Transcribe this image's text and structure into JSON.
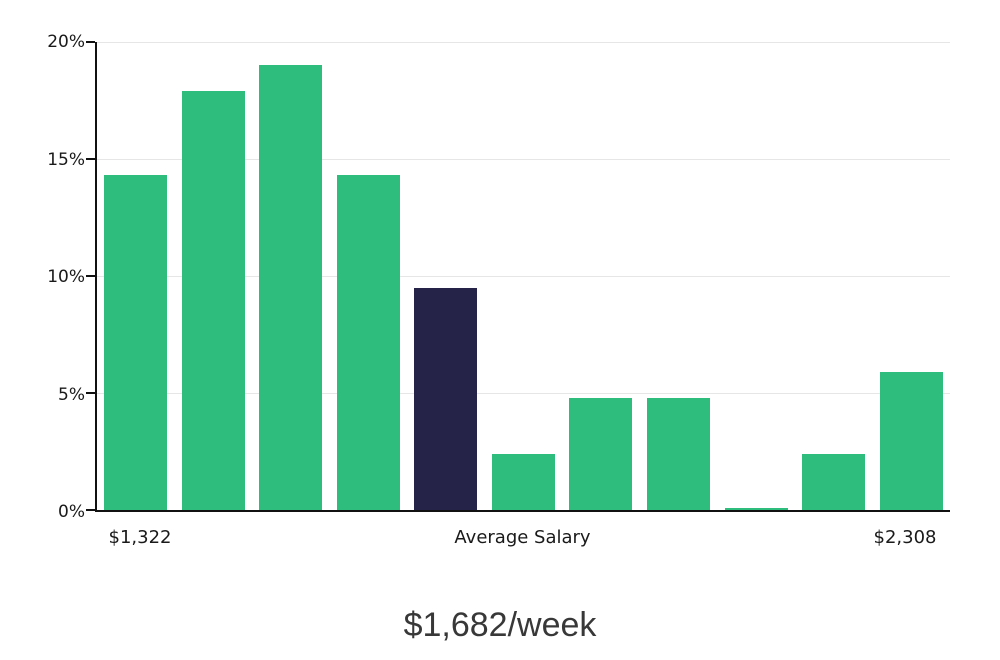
{
  "chart_data": {
    "type": "bar",
    "title": "$1,682/week",
    "values": [
      14.3,
      17.9,
      19.0,
      14.3,
      9.5,
      2.4,
      4.8,
      4.8,
      0.1,
      2.4,
      5.9
    ],
    "highlight_index": 4,
    "bar_color": "#2ebd7d",
    "highlight_color": "#252348",
    "ylim": [
      0,
      20
    ],
    "y_ticks": [
      "20%",
      "15%",
      "10%",
      "5%",
      "0%"
    ],
    "y_tick_values": [
      20,
      15,
      10,
      5,
      0
    ],
    "x_labels": {
      "left": "$1,322",
      "center": "Average Salary",
      "right": "$2,308"
    },
    "grid": "horizontal",
    "legend": "none"
  }
}
